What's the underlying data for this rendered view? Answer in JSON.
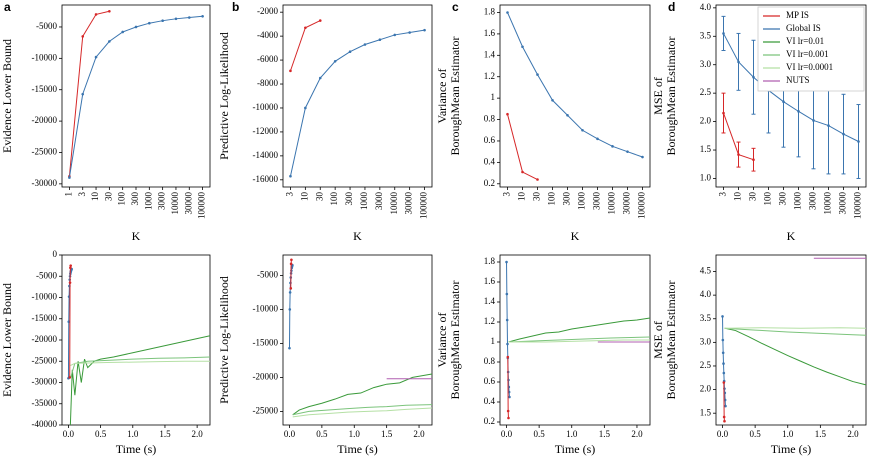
{
  "chart_data": [
    {
      "type": "line",
      "panel": "a",
      "ylabel": [
        "Evidence Lower Bound"
      ],
      "xlabel": "K",
      "categories": [
        "1",
        "3",
        "10",
        "30",
        "100",
        "300",
        "1000",
        "3000",
        "10000",
        "30000",
        "100000"
      ],
      "ylim": [
        -30500,
        -1500
      ],
      "yticks": [
        -30000,
        -25000,
        -20000,
        -15000,
        -10000,
        -5000
      ],
      "series": [
        {
          "color": "#d62728",
          "markers": true,
          "values": [
            -28800,
            -6500,
            -3000,
            -2500,
            null,
            null,
            null,
            null,
            null,
            null,
            null
          ]
        },
        {
          "color": "#3b75af",
          "markers": true,
          "values": [
            -29000,
            -15700,
            -9800,
            -7300,
            -5800,
            -5000,
            -4400,
            -4000,
            -3700,
            -3500,
            -3300
          ]
        }
      ]
    },
    {
      "type": "line",
      "panel": "b",
      "ylabel": [
        "Predictive Log-Likelihood"
      ],
      "xlabel": "K",
      "categories": [
        "3",
        "10",
        "30",
        "100",
        "300",
        "1000",
        "3000",
        "10000",
        "30000",
        "100000"
      ],
      "ylim": [
        -16600,
        -1400
      ],
      "yticks": [
        -16000,
        -14000,
        -12000,
        -10000,
        -8000,
        -6000,
        -4000,
        -2000
      ],
      "series": [
        {
          "color": "#d62728",
          "markers": true,
          "values": [
            -6900,
            -3300,
            -2700,
            null,
            null,
            null,
            null,
            null,
            null,
            null
          ]
        },
        {
          "color": "#3b75af",
          "markers": true,
          "values": [
            -15700,
            -10000,
            -7500,
            -6100,
            -5300,
            -4700,
            -4300,
            -3900,
            -3700,
            -3500
          ]
        }
      ]
    },
    {
      "type": "line",
      "panel": "c",
      "ylabel": [
        "Variance of",
        "BoroughMean Estimator"
      ],
      "xlabel": "K",
      "categories": [
        "3",
        "10",
        "30",
        "100",
        "300",
        "1000",
        "3000",
        "10000",
        "30000",
        "100000"
      ],
      "ylim": [
        0.17,
        1.87
      ],
      "yticks": [
        0.2,
        0.4,
        0.6,
        0.8,
        1,
        1.2,
        1.4,
        1.6,
        1.8
      ],
      "series": [
        {
          "color": "#d62728",
          "markers": true,
          "values": [
            0.85,
            0.31,
            0.24,
            null,
            null,
            null,
            null,
            null,
            null,
            null
          ]
        },
        {
          "color": "#3b75af",
          "markers": true,
          "values": [
            1.8,
            1.48,
            1.22,
            0.98,
            0.84,
            0.7,
            0.62,
            0.55,
            0.5,
            0.45
          ]
        }
      ]
    },
    {
      "type": "line",
      "panel": "d",
      "ylabel": [
        "MSE of",
        "BoroughMean Estimator"
      ],
      "xlabel": "K",
      "categories": [
        "3",
        "10",
        "30",
        "100",
        "300",
        "1000",
        "3000",
        "10000",
        "30000",
        "100000"
      ],
      "ylim": [
        0.85,
        4.05
      ],
      "yticks": [
        {
          "value": 1,
          "label": "1.0"
        },
        1.5,
        {
          "value": 2,
          "label": "2.0"
        },
        2.5,
        {
          "value": 3,
          "label": "3.0"
        },
        3.5,
        {
          "value": 4,
          "label": "4.0"
        }
      ],
      "legend": {
        "loc": "upper right",
        "entries": [
          {
            "name": "MP IS",
            "color": "#d62728"
          },
          {
            "name": "Global IS",
            "color": "#3b75af"
          },
          {
            "name": "VI lr=0.01",
            "color": "#3a9a3a"
          },
          {
            "name": "VI lr=0.001",
            "color": "#7cc47c"
          },
          {
            "name": "VI lr=0.0001",
            "color": "#b5e0a5"
          },
          {
            "name": "NUTS",
            "color": "#b05fb0"
          }
        ]
      },
      "series": [
        {
          "color": "#d62728",
          "markers": true,
          "values": [
            2.15,
            1.42,
            1.33,
            null,
            null,
            null,
            null,
            null,
            null,
            null
          ],
          "errors": [
            0.35,
            0.22,
            0.2,
            null,
            null,
            null,
            null,
            null,
            null,
            null
          ]
        },
        {
          "color": "#3b75af",
          "markers": true,
          "values": [
            3.55,
            3.05,
            2.78,
            2.55,
            2.35,
            2.18,
            2.02,
            1.93,
            1.78,
            1.65
          ],
          "errors": [
            0.3,
            0.5,
            0.65,
            0.75,
            0.8,
            0.8,
            0.85,
            0.85,
            0.7,
            0.65
          ]
        }
      ]
    },
    {
      "type": "line",
      "ylabel": [
        "Evidence Lower Bound"
      ],
      "xlabel": "Time (s)",
      "xlim": [
        -0.1,
        2.2
      ],
      "xticks": [
        {
          "value": 0,
          "label": "0.0"
        },
        0.5,
        {
          "value": 1,
          "label": "1.0"
        },
        1.5,
        {
          "value": 2,
          "label": "2.0"
        }
      ],
      "ylim": [
        -40000,
        0
      ],
      "yticks": [
        -40000,
        -35000,
        -30000,
        -25000,
        -20000,
        -15000,
        -10000,
        -5000,
        0
      ],
      "series": [
        {
          "color": "#3a9a3a",
          "x": [
            0.03,
            0.06,
            0.1,
            0.15,
            0.2,
            0.25,
            0.3,
            0.4,
            0.5,
            0.7,
            1.0,
            1.3,
            1.6,
            1.9,
            2.2
          ],
          "values": [
            -40000,
            -27000,
            -33000,
            -25000,
            -30000,
            -24500,
            -26500,
            -25000,
            -24500,
            -24000,
            -23000,
            -22000,
            -21000,
            -20000,
            -19000
          ]
        },
        {
          "color": "#7cc47c",
          "x": [
            0.03,
            0.1,
            0.3,
            0.6,
            1.0,
            1.4,
            1.8,
            2.2
          ],
          "values": [
            -29000,
            -25500,
            -25000,
            -24800,
            -24500,
            -24300,
            -24200,
            -24000
          ]
        },
        {
          "color": "#b5e0a5",
          "x": [
            0.03,
            0.1,
            0.3,
            0.6,
            1.0,
            1.4,
            1.8,
            2.2
          ],
          "values": [
            -26000,
            -25500,
            -25400,
            -25300,
            -25200,
            -25100,
            -25000,
            -25000
          ]
        },
        {
          "color": "#3b75af",
          "markers": true,
          "x": [
            0,
            0.005,
            0.01,
            0.015,
            0.02,
            0.025,
            0.03,
            0.035,
            0.04,
            0.045,
            0.05
          ],
          "values": [
            -29000,
            -15700,
            -9800,
            -7300,
            -5800,
            -5000,
            -4400,
            -4000,
            -3700,
            -3500,
            -3300
          ]
        },
        {
          "color": "#d62728",
          "markers": true,
          "x": [
            0.02,
            0.025,
            0.03,
            0.035
          ],
          "values": [
            -28800,
            -6500,
            -3000,
            -2500
          ]
        }
      ]
    },
    {
      "type": "line",
      "ylabel": [
        "Predictive Log-Likelihood"
      ],
      "xlabel": "Time (s)",
      "xlim": [
        -0.1,
        2.2
      ],
      "xticks": [
        {
          "value": 0,
          "label": "0.0"
        },
        0.5,
        {
          "value": 1,
          "label": "1.0"
        },
        1.5,
        {
          "value": 2,
          "label": "2.0"
        }
      ],
      "ylim": [
        -27000,
        -2000
      ],
      "yticks": [
        -25000,
        -20000,
        -15000,
        -10000,
        -5000
      ],
      "series": [
        {
          "color": "#3a9a3a",
          "x": [
            0.05,
            0.15,
            0.3,
            0.5,
            0.7,
            0.9,
            1.1,
            1.3,
            1.5,
            1.7,
            1.9,
            2.2
          ],
          "values": [
            -25500,
            -24800,
            -24300,
            -23800,
            -23200,
            -22500,
            -22300,
            -21500,
            -21000,
            -20800,
            -20000,
            -19500
          ]
        },
        {
          "color": "#7cc47c",
          "x": [
            0.05,
            0.3,
            0.6,
            0.9,
            1.2,
            1.5,
            1.8,
            2.2
          ],
          "values": [
            -25500,
            -25000,
            -24800,
            -24600,
            -24400,
            -24300,
            -24100,
            -24000
          ]
        },
        {
          "color": "#b5e0a5",
          "x": [
            0.05,
            0.3,
            0.6,
            0.9,
            1.2,
            1.5,
            1.8,
            2.2
          ],
          "values": [
            -25800,
            -25500,
            -25300,
            -25100,
            -25000,
            -24900,
            -24700,
            -24500
          ]
        },
        {
          "color": "#b05fb0",
          "x": [
            1.5,
            2.2
          ],
          "values": [
            -20200,
            -20200
          ]
        },
        {
          "color": "#3b75af",
          "markers": true,
          "x": [
            0,
            0.005,
            0.01,
            0.015,
            0.02,
            0.025,
            0.03,
            0.035,
            0.04,
            0.045
          ],
          "values": [
            -15700,
            -10000,
            -7500,
            -6100,
            -5300,
            -4700,
            -4300,
            -3900,
            -3700,
            -3500
          ]
        },
        {
          "color": "#d62728",
          "markers": true,
          "x": [
            0.02,
            0.025,
            0.03
          ],
          "values": [
            -6900,
            -3300,
            -2700
          ]
        }
      ]
    },
    {
      "type": "line",
      "ylabel": [
        "Variance of",
        "BoroughMean Estimator"
      ],
      "xlabel": "Time (s)",
      "xlim": [
        -0.1,
        2.2
      ],
      "xticks": [
        {
          "value": 0,
          "label": "0.0"
        },
        0.5,
        {
          "value": 1,
          "label": "1.0"
        },
        1.5,
        {
          "value": 2,
          "label": "2.0"
        }
      ],
      "ylim": [
        0.17,
        1.87
      ],
      "yticks": [
        0.2,
        0.4,
        0.6,
        0.8,
        1,
        1.2,
        1.4,
        1.6,
        1.8
      ],
      "series": [
        {
          "color": "#3a9a3a",
          "x": [
            0.03,
            0.2,
            0.4,
            0.6,
            0.8,
            1.0,
            1.2,
            1.4,
            1.6,
            1.8,
            2.0,
            2.2
          ],
          "values": [
            1.0,
            1.03,
            1.06,
            1.09,
            1.1,
            1.13,
            1.15,
            1.17,
            1.19,
            1.21,
            1.22,
            1.24
          ]
        },
        {
          "color": "#7cc47c",
          "x": [
            0.03,
            0.4,
            0.8,
            1.2,
            1.6,
            2.2
          ],
          "values": [
            1.0,
            1.01,
            1.02,
            1.03,
            1.04,
            1.05
          ]
        },
        {
          "color": "#b5e0a5",
          "x": [
            0.03,
            0.6,
            1.2,
            1.8,
            2.2
          ],
          "values": [
            1.0,
            1.0,
            1.01,
            1.02,
            1.02
          ]
        },
        {
          "color": "#b05fb0",
          "x": [
            1.4,
            2.2
          ],
          "values": [
            1.0,
            1.0
          ]
        },
        {
          "color": "#3b75af",
          "markers": true,
          "x": [
            0,
            0.005,
            0.01,
            0.015,
            0.02,
            0.025,
            0.03,
            0.035,
            0.04,
            0.045
          ],
          "values": [
            1.8,
            1.48,
            1.22,
            0.98,
            0.84,
            0.7,
            0.62,
            0.55,
            0.5,
            0.45
          ]
        },
        {
          "color": "#d62728",
          "markers": true,
          "x": [
            0.02,
            0.025,
            0.03
          ],
          "values": [
            0.85,
            0.31,
            0.24
          ]
        }
      ]
    },
    {
      "type": "line",
      "ylabel": [
        "MSE of",
        "BoroughMean Estimator"
      ],
      "xlabel": "Time (s)",
      "xlim": [
        -0.1,
        2.2
      ],
      "xticks": [
        {
          "value": 0,
          "label": "0.0"
        },
        0.5,
        {
          "value": 1,
          "label": "1.0"
        },
        1.5,
        {
          "value": 2,
          "label": "2.0"
        }
      ],
      "ylim": [
        1.25,
        4.85
      ],
      "yticks": [
        1.5,
        {
          "value": 2,
          "label": "2.0"
        },
        2.5,
        {
          "value": 3,
          "label": "3.0"
        },
        3.5,
        {
          "value": 4,
          "label": "4.0"
        },
        4.5
      ],
      "series": [
        {
          "color": "#3a9a3a",
          "x": [
            0.03,
            0.2,
            0.4,
            0.6,
            0.8,
            1.0,
            1.2,
            1.4,
            1.6,
            1.8,
            2.0,
            2.2
          ],
          "values": [
            3.3,
            3.25,
            3.12,
            2.98,
            2.85,
            2.72,
            2.6,
            2.48,
            2.37,
            2.27,
            2.17,
            2.1
          ]
        },
        {
          "color": "#7cc47c",
          "x": [
            0.03,
            0.5,
            1.0,
            1.5,
            2.0,
            2.2
          ],
          "values": [
            3.3,
            3.26,
            3.22,
            3.19,
            3.16,
            3.15
          ]
        },
        {
          "color": "#b5e0a5",
          "x": [
            0.03,
            0.6,
            1.2,
            1.8,
            2.2
          ],
          "values": [
            3.3,
            3.31,
            3.3,
            3.31,
            3.3
          ]
        },
        {
          "color": "#b05fb0",
          "x": [
            1.4,
            2.2
          ],
          "values": [
            4.78,
            4.78
          ]
        },
        {
          "color": "#3b75af",
          "markers": true,
          "x": [
            0,
            0.005,
            0.01,
            0.015,
            0.02,
            0.025,
            0.03,
            0.035,
            0.04,
            0.045
          ],
          "values": [
            3.55,
            3.05,
            2.78,
            2.55,
            2.35,
            2.18,
            2.02,
            1.93,
            1.78,
            1.65
          ]
        },
        {
          "color": "#d62728",
          "markers": true,
          "x": [
            0.02,
            0.025,
            0.03
          ],
          "values": [
            2.15,
            1.42,
            1.33
          ]
        }
      ]
    }
  ]
}
